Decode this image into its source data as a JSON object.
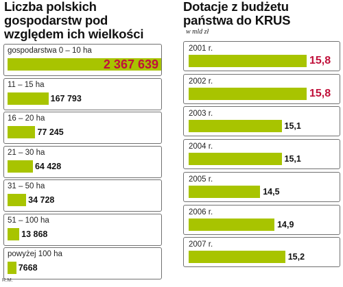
{
  "chart_data": [
    {
      "type": "bar",
      "title": "Liczba polskich\ngospodarstw pod\nwzględem ich wielkości",
      "categories": [
        "gospodarstwa 0 – 10 ha",
        "11 – 15 ha",
        "16 – 20 ha",
        "21 – 30 ha",
        "31 – 50 ha",
        "51 – 100 ha",
        "powyżej 100 ha"
      ],
      "values": [
        2367639,
        167793,
        77245,
        64428,
        34728,
        13868,
        7668
      ],
      "value_labels": [
        "2 367 639",
        "167 793",
        "77 245",
        "64 428",
        "34 728",
        "13 868",
        "7668"
      ],
      "highlight_color": "#c0103a",
      "bar_color": "#a8c400"
    },
    {
      "type": "bar",
      "title": "Dotacje z budżetu\npaństwa do KRUS",
      "subtitle": "w mld zł",
      "categories": [
        "2001 r.",
        "2002 r.",
        "2003 r.",
        "2004 r.",
        "2005 r.",
        "2006 r.",
        "2007 r."
      ],
      "values": [
        15.8,
        15.8,
        15.1,
        15.1,
        14.5,
        14.9,
        15.2
      ],
      "value_labels": [
        "15,8",
        "15,8",
        "15,1",
        "15,1",
        "14,5",
        "14,9",
        "15,2"
      ],
      "highlight_color": "#c0103a",
      "bar_color": "#a8c400"
    }
  ],
  "credit": "R.M."
}
